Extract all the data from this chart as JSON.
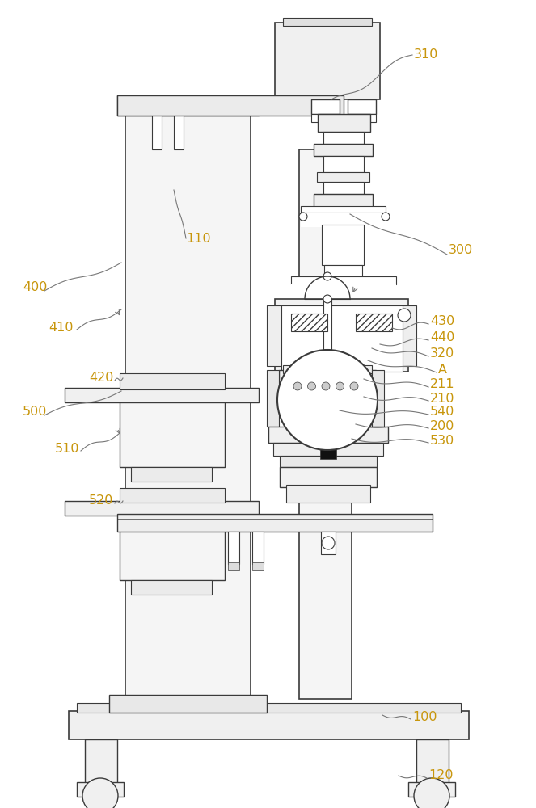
{
  "bg_color": "#ffffff",
  "line_color": "#3a3a3a",
  "label_color": "#c8960c",
  "fig_width": 6.63,
  "fig_height": 10.0
}
